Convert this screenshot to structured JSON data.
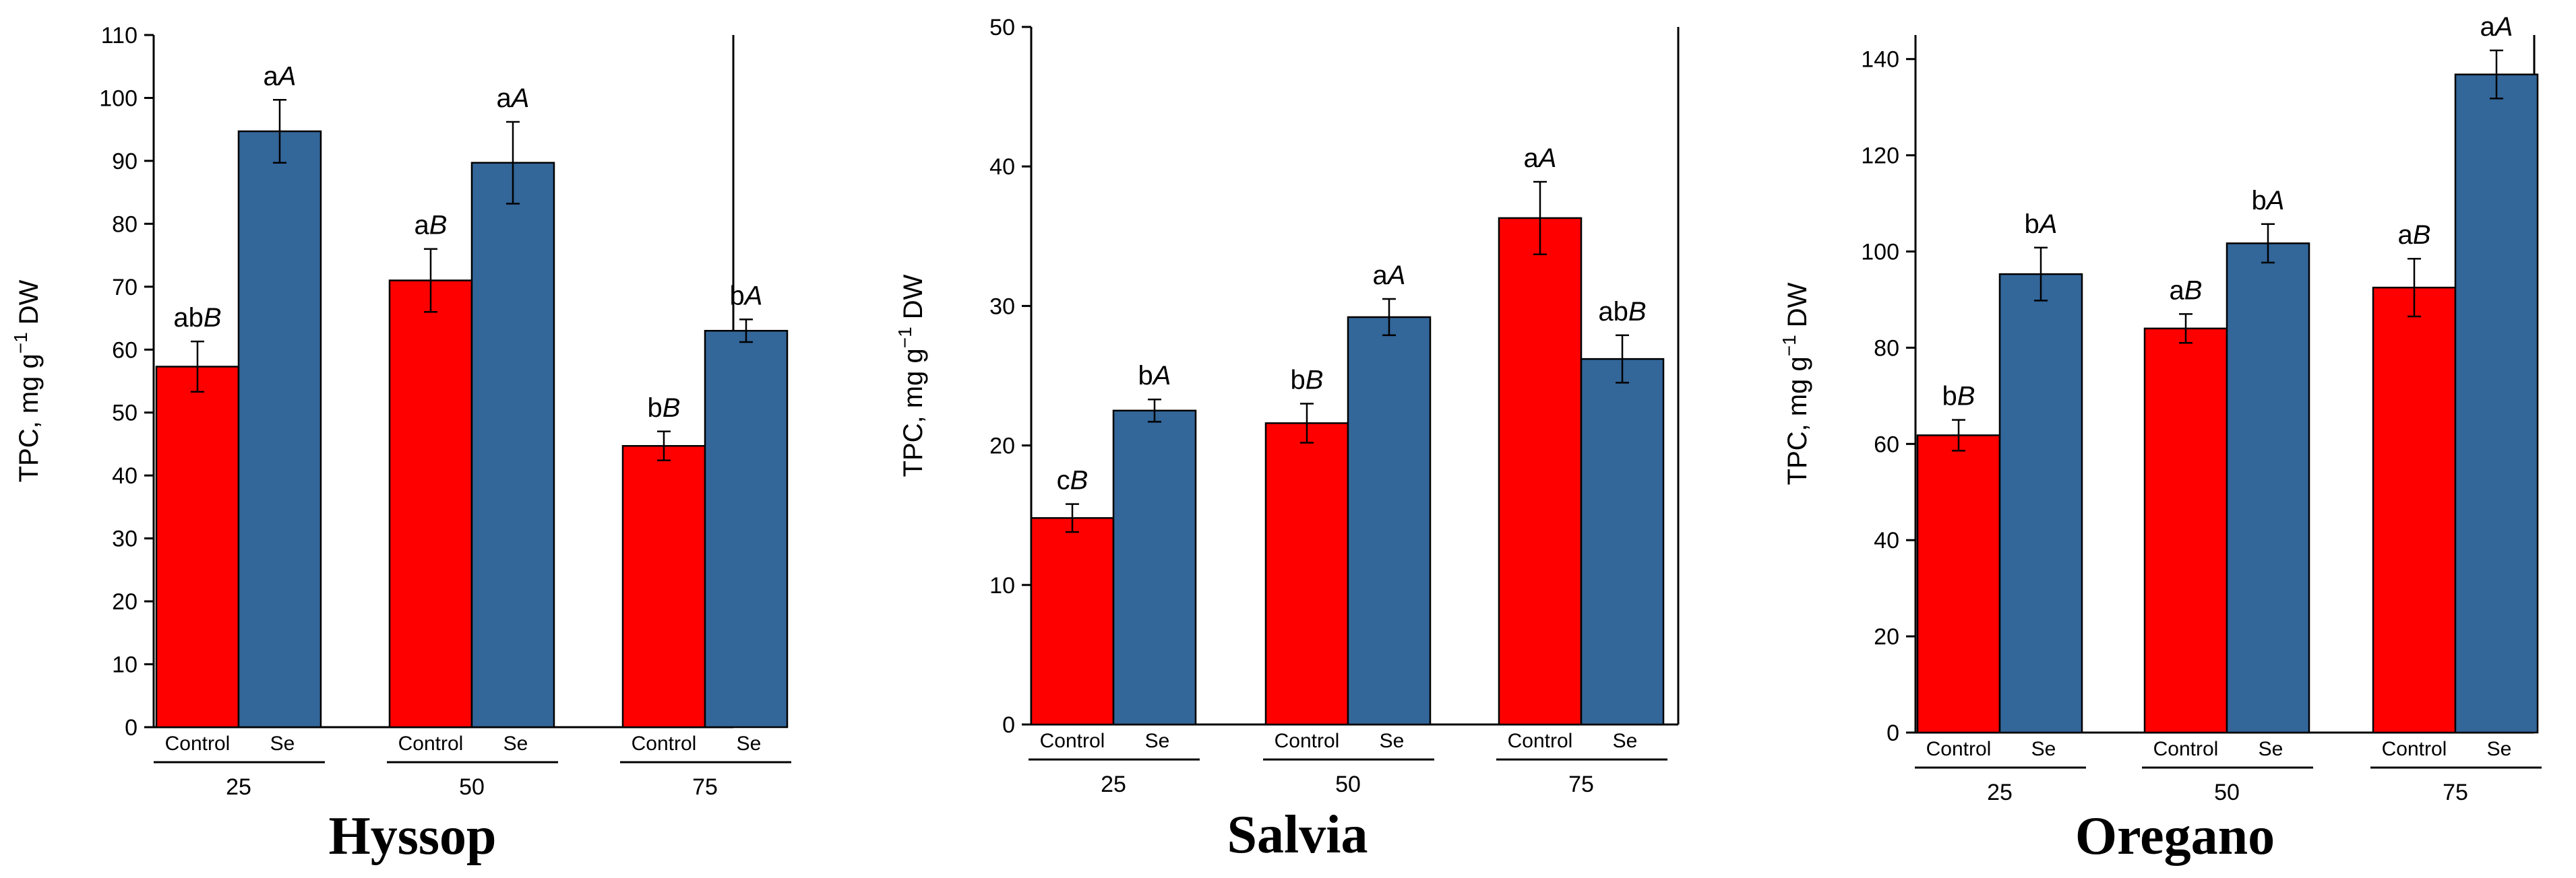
{
  "colors": {
    "control": "#ff0000",
    "se": "#336699",
    "axis": "#000000"
  },
  "chart_data": [
    {
      "type": "bar",
      "title": "Hyssop",
      "ylabel": {
        "base": "TPC, mg g",
        "sup": "−1",
        "suffix": " DW"
      },
      "ylim": [
        0,
        110
      ],
      "yticks": [
        0,
        10,
        20,
        30,
        40,
        50,
        60,
        70,
        80,
        90,
        100,
        110
      ],
      "groups": [
        "25",
        "50",
        "75"
      ],
      "treatments": [
        "Control",
        "Se"
      ],
      "series": [
        {
          "name": "Control",
          "values": [
            57.3,
            71.0,
            44.7
          ],
          "errors": [
            4.0,
            5.0,
            2.3
          ],
          "letters": [
            [
              "ab",
              "B"
            ],
            [
              "a",
              "B"
            ],
            [
              "b",
              "B"
            ]
          ]
        },
        {
          "name": "Se",
          "values": [
            94.7,
            89.7,
            63.0
          ],
          "errors": [
            5.0,
            6.5,
            1.8
          ],
          "letters": [
            [
              "a",
              "A"
            ],
            [
              "a",
              "A"
            ],
            [
              "b",
              "A"
            ]
          ]
        }
      ]
    },
    {
      "type": "bar",
      "title": "Salvia",
      "ylabel": {
        "base": "TPC, mg g",
        "sup": "−1",
        "suffix": " DW"
      },
      "ylim": [
        0,
        50
      ],
      "yticks": [
        0,
        10,
        20,
        30,
        40,
        50
      ],
      "groups": [
        "25",
        "50",
        "75"
      ],
      "treatments": [
        "Control",
        "Se"
      ],
      "series": [
        {
          "name": "Control",
          "values": [
            14.8,
            21.6,
            36.3
          ],
          "errors": [
            1.0,
            1.4,
            2.6
          ],
          "letters": [
            [
              "c",
              "B"
            ],
            [
              "b",
              "B"
            ],
            [
              "a",
              "A"
            ]
          ]
        },
        {
          "name": "Se",
          "values": [
            22.5,
            29.2,
            26.2
          ],
          "errors": [
            0.8,
            1.3,
            1.7
          ],
          "letters": [
            [
              "b",
              "A"
            ],
            [
              "a",
              "A"
            ],
            [
              "ab",
              "B"
            ]
          ]
        }
      ]
    },
    {
      "type": "bar",
      "title": "Oregano",
      "ylabel": {
        "base": "TPC, mg g",
        "sup": "−1",
        "suffix": " DW"
      },
      "ylim": [
        0,
        145
      ],
      "yticks": [
        0,
        20,
        40,
        60,
        80,
        100,
        120,
        140
      ],
      "groups": [
        "25",
        "50",
        "75"
      ],
      "treatments": [
        "Control",
        "Se"
      ],
      "series": [
        {
          "name": "Control",
          "values": [
            61.8,
            84.0,
            92.5
          ],
          "errors": [
            3.2,
            3.0,
            6.0
          ],
          "letters": [
            [
              "b",
              "B"
            ],
            [
              "a",
              "B"
            ],
            [
              "a",
              "B"
            ]
          ]
        },
        {
          "name": "Se",
          "values": [
            95.3,
            101.7,
            136.8
          ],
          "errors": [
            5.5,
            4.0,
            5.0
          ],
          "letters": [
            [
              "b",
              "A"
            ],
            [
              "b",
              "A"
            ],
            [
              "a",
              "A"
            ]
          ]
        }
      ]
    }
  ]
}
